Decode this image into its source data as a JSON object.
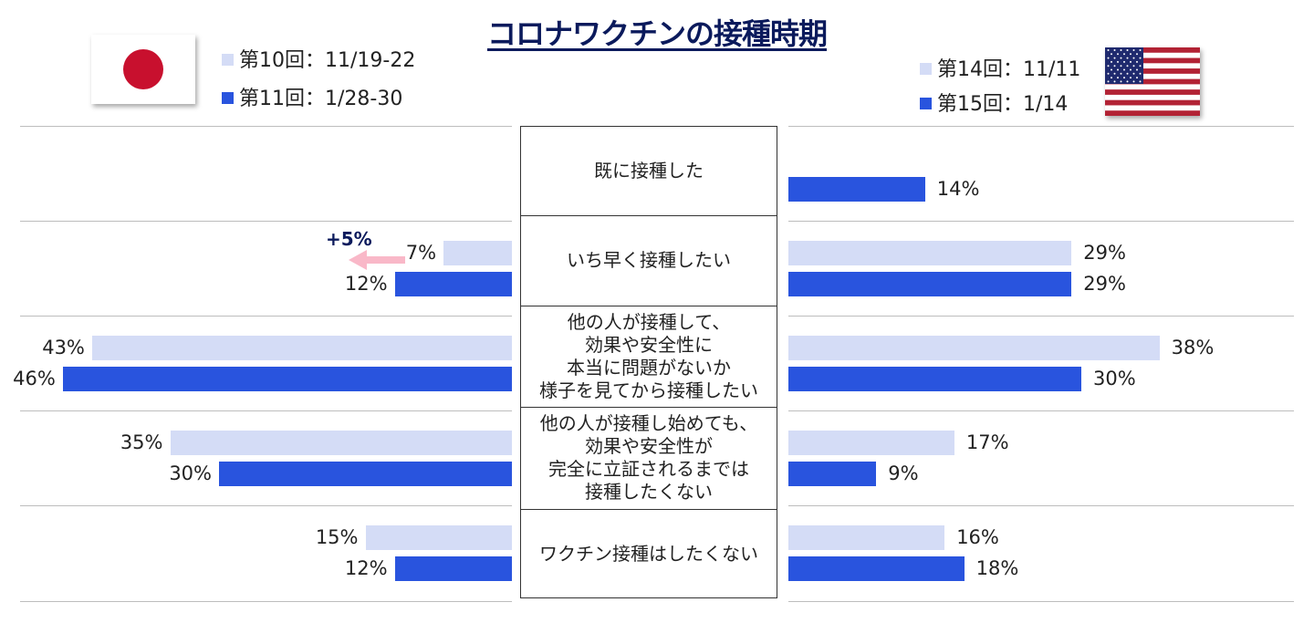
{
  "title": "コロナワクチンの接種時期",
  "colors": {
    "light": "#d4dcf6",
    "dark": "#2954de",
    "title": "#0b1a5c",
    "arrow": "#f9b8c8",
    "jp_red": "#c8102e"
  },
  "japan": {
    "flag_icon": "japan-flag-icon",
    "legend": [
      {
        "label": "第10回：11/19-22",
        "color": "#d4dcf6"
      },
      {
        "label": "第11回：1/28-30",
        "color": "#2954de"
      }
    ]
  },
  "usa": {
    "flag_icon": "usa-flag-icon",
    "legend": [
      {
        "label": "第14回：11/11",
        "color": "#d4dcf6"
      },
      {
        "label": "第15回：1/14",
        "color": "#2954de"
      }
    ]
  },
  "chart_data": {
    "type": "bar",
    "orientation": "horizontal-butterfly",
    "categories": [
      "既に接種した",
      "いち早く接種したい",
      "他の人が接種して、\n効果や安全性に\n本当に問題がないか\n様子を見てから接種したい",
      "他の人が接種し始めても、\n効果や安全性が\n完全に立証されるまでは\n接種したくない",
      "ワクチン接種はしたくない"
    ],
    "japan": [
      {
        "name": "第10回：11/19-22",
        "values": [
          null,
          7,
          43,
          35,
          15
        ],
        "labels": [
          "",
          "7%",
          "43%",
          "35%",
          "15%"
        ]
      },
      {
        "name": "第11回：1/28-30",
        "values": [
          null,
          12,
          46,
          30,
          12
        ],
        "labels": [
          "",
          "12%",
          "46%",
          "30%",
          "12%"
        ]
      }
    ],
    "usa": [
      {
        "name": "第14回：11/11",
        "values": [
          null,
          29,
          38,
          17,
          16
        ],
        "labels": [
          "",
          "29%",
          "38%",
          "17%",
          "16%"
        ]
      },
      {
        "name": "第15回：1/14",
        "values": [
          14,
          29,
          30,
          9,
          18
        ],
        "labels": [
          "14%",
          "29%",
          "30%",
          "9%",
          "18%"
        ]
      }
    ],
    "annotation": {
      "category_index": 1,
      "text": "+5%"
    },
    "unit": "%"
  }
}
